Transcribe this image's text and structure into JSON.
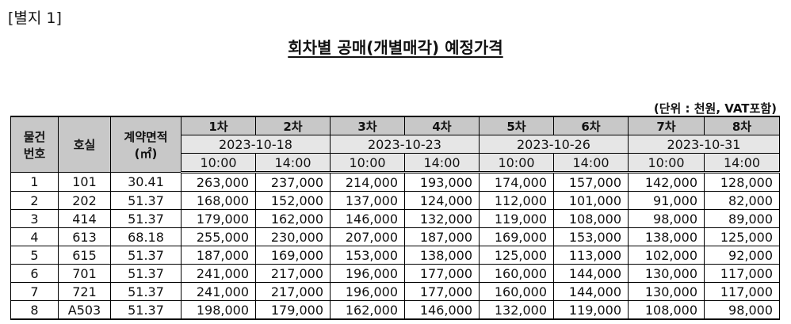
{
  "annex_label": "[별지 1]",
  "title": "회차별 공매(개별매각) 예정가격",
  "unit_note": "(단위 : 천원, VAT포함)",
  "headers": {
    "item_no": [
      "물건",
      "번호"
    ],
    "unit": "호실",
    "area": [
      "계약면적",
      "(㎡)"
    ],
    "rounds": [
      "1차",
      "2차",
      "3차",
      "4차",
      "5차",
      "6차",
      "7차",
      "8차"
    ],
    "dates": [
      "2023-10-18",
      "2023-10-23",
      "2023-10-26",
      "2023-10-31"
    ],
    "times": [
      "10:00",
      "14:00",
      "10:00",
      "14:00",
      "10:00",
      "14:00",
      "10:00",
      "14:00"
    ]
  },
  "rows": [
    {
      "no": "1",
      "unit": "101",
      "area": "30.41",
      "prices": [
        "263,000",
        "237,000",
        "214,000",
        "193,000",
        "174,000",
        "157,000",
        "142,000",
        "128,000"
      ]
    },
    {
      "no": "2",
      "unit": "202",
      "area": "51.37",
      "prices": [
        "168,000",
        "152,000",
        "137,000",
        "124,000",
        "112,000",
        "101,000",
        "91,000",
        "82,000"
      ]
    },
    {
      "no": "3",
      "unit": "414",
      "area": "51.37",
      "prices": [
        "179,000",
        "162,000",
        "146,000",
        "132,000",
        "119,000",
        "108,000",
        "98,000",
        "89,000"
      ]
    },
    {
      "no": "4",
      "unit": "613",
      "area": "68.18",
      "prices": [
        "255,000",
        "230,000",
        "207,000",
        "187,000",
        "169,000",
        "153,000",
        "138,000",
        "125,000"
      ]
    },
    {
      "no": "5",
      "unit": "615",
      "area": "51.37",
      "prices": [
        "187,000",
        "169,000",
        "153,000",
        "138,000",
        "125,000",
        "113,000",
        "102,000",
        "92,000"
      ]
    },
    {
      "no": "6",
      "unit": "701",
      "area": "51.37",
      "prices": [
        "241,000",
        "217,000",
        "196,000",
        "177,000",
        "160,000",
        "144,000",
        "130,000",
        "117,000"
      ]
    },
    {
      "no": "7",
      "unit": "721",
      "area": "51.37",
      "prices": [
        "241,000",
        "217,000",
        "196,000",
        "177,000",
        "160,000",
        "144,000",
        "130,000",
        "117,000"
      ]
    },
    {
      "no": "8",
      "unit": "A503",
      "area": "51.37",
      "prices": [
        "198,000",
        "179,000",
        "162,000",
        "146,000",
        "132,000",
        "119,000",
        "108,000",
        "98,000"
      ]
    }
  ]
}
